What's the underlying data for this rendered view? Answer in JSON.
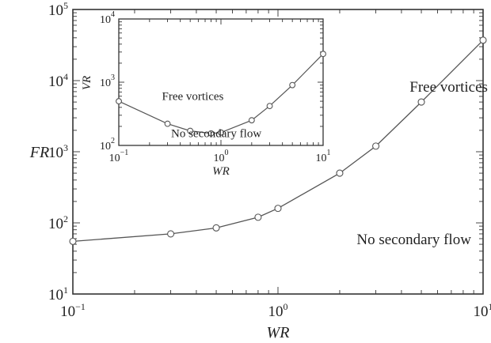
{
  "chart_data": [
    {
      "type": "line",
      "xlabel": "WR",
      "ylabel": "FR",
      "xscale": "log",
      "yscale": "log",
      "xlim": [
        0.1,
        10
      ],
      "ylim": [
        10,
        100000
      ],
      "x_ticks": [
        {
          "value": 0.1,
          "base": "10",
          "exp": "−1"
        },
        {
          "value": 1,
          "base": "10",
          "exp": "0"
        },
        {
          "value": 10,
          "base": "10",
          "exp": "1"
        }
      ],
      "y_ticks": [
        {
          "value": 10,
          "base": "10",
          "exp": "1"
        },
        {
          "value": 100,
          "base": "10",
          "exp": "2"
        },
        {
          "value": 1000,
          "base": "10",
          "exp": "3"
        },
        {
          "value": 10000,
          "base": "10",
          "exp": "4"
        },
        {
          "value": 100000,
          "base": "10",
          "exp": "5"
        }
      ],
      "series": [
        {
          "x": [
            0.1,
            0.3,
            0.5,
            0.8,
            1.0,
            2.0,
            3.0,
            5.0,
            10.0
          ],
          "y": [
            55,
            70,
            85,
            120,
            160,
            500,
            1200,
            5000,
            37000
          ],
          "color": "#555555",
          "marker": "open-circle"
        }
      ],
      "annotations": [
        {
          "text": "Free vortices",
          "x": 6.8,
          "y": 7000
        },
        {
          "text": "No secondary flow",
          "x": 4.6,
          "y": 50
        }
      ],
      "grid": false
    },
    {
      "type": "line",
      "xlabel": "WR",
      "ylabel": "VR",
      "xscale": "log",
      "yscale": "log",
      "xlim": [
        0.1,
        10
      ],
      "ylim": [
        100,
        10000
      ],
      "x_ticks": [
        {
          "value": 0.1,
          "base": "10",
          "exp": "−1"
        },
        {
          "value": 1,
          "base": "10",
          "exp": "0"
        },
        {
          "value": 10,
          "base": "10",
          "exp": "1"
        }
      ],
      "y_ticks": [
        {
          "value": 100,
          "base": "10",
          "exp": "2"
        },
        {
          "value": 1000,
          "base": "10",
          "exp": "3"
        },
        {
          "value": 10000,
          "base": "10",
          "exp": "4"
        }
      ],
      "series": [
        {
          "x": [
            0.1,
            0.3,
            0.5,
            0.8,
            1.0,
            2.0,
            3.0,
            5.0,
            10.0
          ],
          "y": [
            500,
            220,
            170,
            155,
            160,
            250,
            420,
            900,
            2800
          ],
          "color": "#555555",
          "marker": "open-circle"
        }
      ],
      "annotations": [
        {
          "text": "Free vortices",
          "x": 0.53,
          "y": 520
        },
        {
          "text": "No secondary flow",
          "x": 0.9,
          "y": 135
        }
      ],
      "grid": false
    }
  ]
}
